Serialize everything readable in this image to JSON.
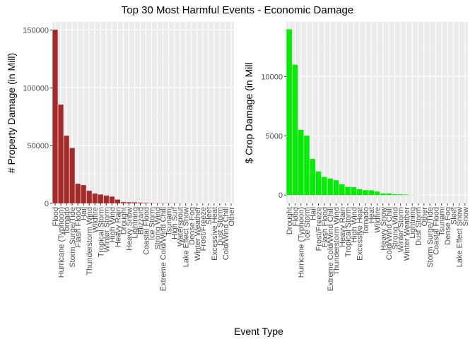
{
  "figure": {
    "title": "Top 30 Most Harmful Events - Economic Damage",
    "xlabel": "Event Type"
  },
  "chart_data": [
    {
      "type": "bar",
      "ylabel": "# Property Damage (in Mill)",
      "ylim": [
        0,
        157000
      ],
      "yticks": [
        0,
        50000,
        100000,
        150000
      ],
      "ytick_labels": [
        "0",
        "50000",
        "100000",
        "150000"
      ],
      "color": "#a52a2a",
      "grid": true,
      "categories": [
        "Flood",
        "Hurricane (Typhoon)",
        "Tornado",
        "Storm Surge/Tide",
        "Flash Flood",
        "Hail",
        "Thunderstorm Wind",
        "Wildfire",
        "Tropical Storm",
        "Winter Storm",
        "High Wind",
        "Heavy Rain",
        "Drought",
        "Heavy Snow",
        "Lightning",
        "Blizzard",
        "Coastal Flood",
        "Ice Storm",
        "Strong Wind",
        "Extreme Cold/Wind Chill",
        "Tsunami",
        "High Surf",
        "Waterspout",
        "Lake Effect Snow",
        "Dense Fog",
        "Winter Weather",
        "Frost/Freeze",
        "Sleet",
        "Excessive Heat",
        "Dust Storm",
        "Cold/Wind Chill",
        "Other"
      ],
      "values": [
        150300,
        85400,
        58600,
        47900,
        17000,
        15800,
        10900,
        8500,
        7700,
        6800,
        5900,
        3300,
        1100,
        1000,
        930,
        660,
        450,
        300,
        180,
        140,
        140,
        100,
        60,
        40,
        30,
        25,
        20,
        10,
        8,
        6,
        3,
        1
      ]
    },
    {
      "type": "bar",
      "ylabel": "$ Crop Damage (in Mill",
      "ylim": [
        -700,
        14600
      ],
      "yticks": [
        0,
        5000,
        10000
      ],
      "ytick_labels": [
        "0",
        "5000",
        "10000"
      ],
      "color": "#00ee00",
      "grid": true,
      "categories": [
        "Drought",
        "Flood",
        "Hurricane (Typhoon)",
        "Ice Storm",
        "Hail",
        "Frost/Freeze",
        "Flash Flood",
        "Extreme Cold/Wind Chill",
        "Thunderstorm Wind",
        "Heavy Rain",
        "Tropical Storm",
        "High Wind",
        "Excessive Heat",
        "Tornado",
        "Heat",
        "Wildfire",
        "Heavy Snow",
        "Cold/Wind Chill",
        "Strong Wind",
        "Winter Storm",
        "Winter Weather",
        "Lightning",
        "Dust Storm",
        "Other",
        "Storm Surge/Tide",
        "Coastal Flood",
        "Tsunami",
        "Dense Fog",
        "Sleet",
        "Lake Effect Snow",
        "Snow"
      ],
      "values": [
        13972,
        10990,
        5506,
        5022,
        3046,
        1997,
        1530,
        1400,
        1250,
        919,
        694,
        665,
        493,
        417,
        401,
        300,
        134,
        134,
        70,
        65,
        42,
        12,
        3.6,
        2,
        0.9,
        0.06,
        0.02,
        0.01,
        0.01,
        0.01,
        0.01
      ]
    }
  ]
}
